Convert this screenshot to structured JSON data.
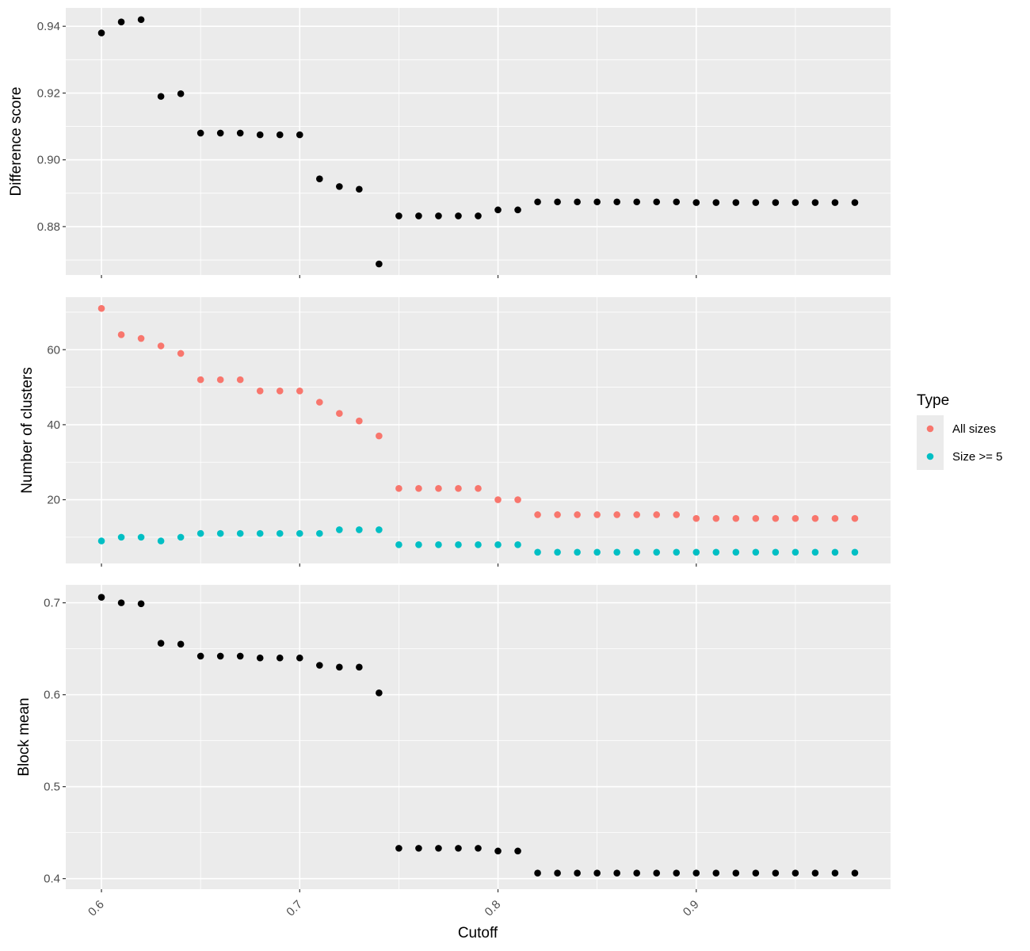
{
  "chart_data": {
    "type": "scatter",
    "xlabel": "Cutoff",
    "xlim": [
      0.582,
      0.998
    ],
    "x_ticks": [
      0.6,
      0.7,
      0.8,
      0.9
    ],
    "x_tick_labels": [
      "0.6",
      "0.7",
      "0.8",
      "0.9"
    ],
    "x": [
      0.6,
      0.61,
      0.62,
      0.63,
      0.64,
      0.65,
      0.66,
      0.67,
      0.68,
      0.69,
      0.7,
      0.71,
      0.72,
      0.73,
      0.74,
      0.75,
      0.76,
      0.77,
      0.78,
      0.79,
      0.8,
      0.81,
      0.82,
      0.83,
      0.84,
      0.85,
      0.86,
      0.87,
      0.88,
      0.89,
      0.9,
      0.91,
      0.92,
      0.93,
      0.94,
      0.95,
      0.96,
      0.97,
      0.98
    ],
    "background": "#ebebeb",
    "grid": true,
    "panels": [
      {
        "ylabel": "Difference score",
        "ylim": [
          0.8655,
          0.9455
        ],
        "y_ticks": [
          0.88,
          0.9,
          0.92,
          0.94
        ],
        "y_tick_labels": [
          "0.88",
          "0.90",
          "0.92",
          "0.94"
        ],
        "series": [
          {
            "color": "#000000",
            "values": [
              0.938,
              0.9413,
              0.942,
              0.919,
              0.9198,
              0.908,
              0.908,
              0.908,
              0.9075,
              0.9075,
              0.9075,
              0.8943,
              0.892,
              0.8912,
              0.8688,
              0.8832,
              0.8832,
              0.8832,
              0.8832,
              0.8832,
              0.885,
              0.885,
              0.8874,
              0.8874,
              0.8874,
              0.8874,
              0.8874,
              0.8874,
              0.8874,
              0.8874,
              0.8872,
              0.8872,
              0.8872,
              0.8872,
              0.8872,
              0.8872,
              0.8872,
              0.8872,
              0.8872
            ]
          }
        ]
      },
      {
        "ylabel": "Number of clusters",
        "ylim": [
          3,
          74
        ],
        "y_ticks": [
          20,
          40,
          60
        ],
        "y_tick_labels": [
          "20",
          "40",
          "60"
        ],
        "series": [
          {
            "name": "All sizes",
            "color": "#f8766d",
            "values": [
              71,
              64,
              63,
              61,
              59,
              52,
              52,
              52,
              49,
              49,
              49,
              46,
              43,
              41,
              37,
              23,
              23,
              23,
              23,
              23,
              20,
              20,
              16,
              16,
              16,
              16,
              16,
              16,
              16,
              16,
              15,
              15,
              15,
              15,
              15,
              15,
              15,
              15,
              15
            ]
          },
          {
            "name": "Size >= 5",
            "color": "#00bfc4",
            "values": [
              9,
              10,
              10,
              9,
              10,
              11,
              11,
              11,
              11,
              11,
              11,
              11,
              12,
              12,
              12,
              8,
              8,
              8,
              8,
              8,
              8,
              8,
              6,
              6,
              6,
              6,
              6,
              6,
              6,
              6,
              6,
              6,
              6,
              6,
              6,
              6,
              6,
              6,
              6
            ]
          }
        ]
      },
      {
        "ylabel": "Block mean",
        "ylim": [
          0.3885,
          0.7195
        ],
        "y_ticks": [
          0.4,
          0.5,
          0.6,
          0.7
        ],
        "y_tick_labels": [
          "0.4",
          "0.5",
          "0.6",
          "0.7"
        ],
        "series": [
          {
            "color": "#000000",
            "values": [
              0.706,
              0.7,
              0.699,
              0.656,
              0.655,
              0.642,
              0.642,
              0.642,
              0.64,
              0.64,
              0.64,
              0.632,
              0.63,
              0.63,
              0.602,
              0.433,
              0.433,
              0.433,
              0.433,
              0.433,
              0.43,
              0.43,
              0.406,
              0.406,
              0.406,
              0.406,
              0.406,
              0.406,
              0.406,
              0.406,
              0.406,
              0.406,
              0.406,
              0.406,
              0.406,
              0.406,
              0.406,
              0.406,
              0.406
            ]
          }
        ]
      }
    ],
    "legend": {
      "title": "Type",
      "position": "right",
      "entries": [
        {
          "label": "All sizes",
          "color": "#f8766d"
        },
        {
          "label": "Size >= 5",
          "color": "#00bfc4"
        }
      ]
    }
  }
}
